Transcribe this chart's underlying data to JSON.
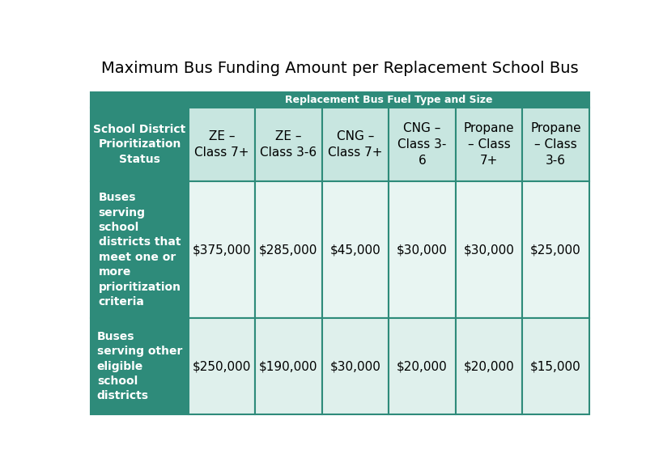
{
  "title": "Maximum Bus Funding Amount per Replacement School Bus",
  "header_merged": "Replacement Bus Fuel Type and Size",
  "col_headers": [
    "ZE –\nClass 7+",
    "ZE –\nClass 3-6",
    "CNG –\nClass 7+",
    "CNG –\nClass 3-\n6",
    "Propane\n– Class\n7+",
    "Propane\n– Class\n3-6"
  ],
  "row_headers": [
    "School District\nPrioritization\nStatus",
    "Buses\nserving\nschool\ndistricts that\nmeet one or\nmore\nprioritization\ncriteria",
    "Buses\nserving other\neligible\nschool\ndistricts"
  ],
  "data": [
    [
      "$375,000",
      "$285,000",
      "$45,000",
      "$30,000",
      "$30,000",
      "$25,000"
    ],
    [
      "$250,000",
      "$190,000",
      "$30,000",
      "$20,000",
      "$20,000",
      "$15,000"
    ]
  ],
  "teal_dark": "#2E8B7A",
  "teal_light": "#C8E6E0",
  "merged_header_bg": "#2E8B7A",
  "col_header_bg": "#C8E6E0",
  "data_row1_bg": "#E8F5F2",
  "data_row2_bg": "#DFF0EC",
  "white": "#FFFFFF",
  "border_color": "#2E8B7A",
  "title_fontsize": 14,
  "col_header_fontsize": 11,
  "row_header_fontsize": 10,
  "data_fontsize": 11,
  "merged_fontsize": 9
}
